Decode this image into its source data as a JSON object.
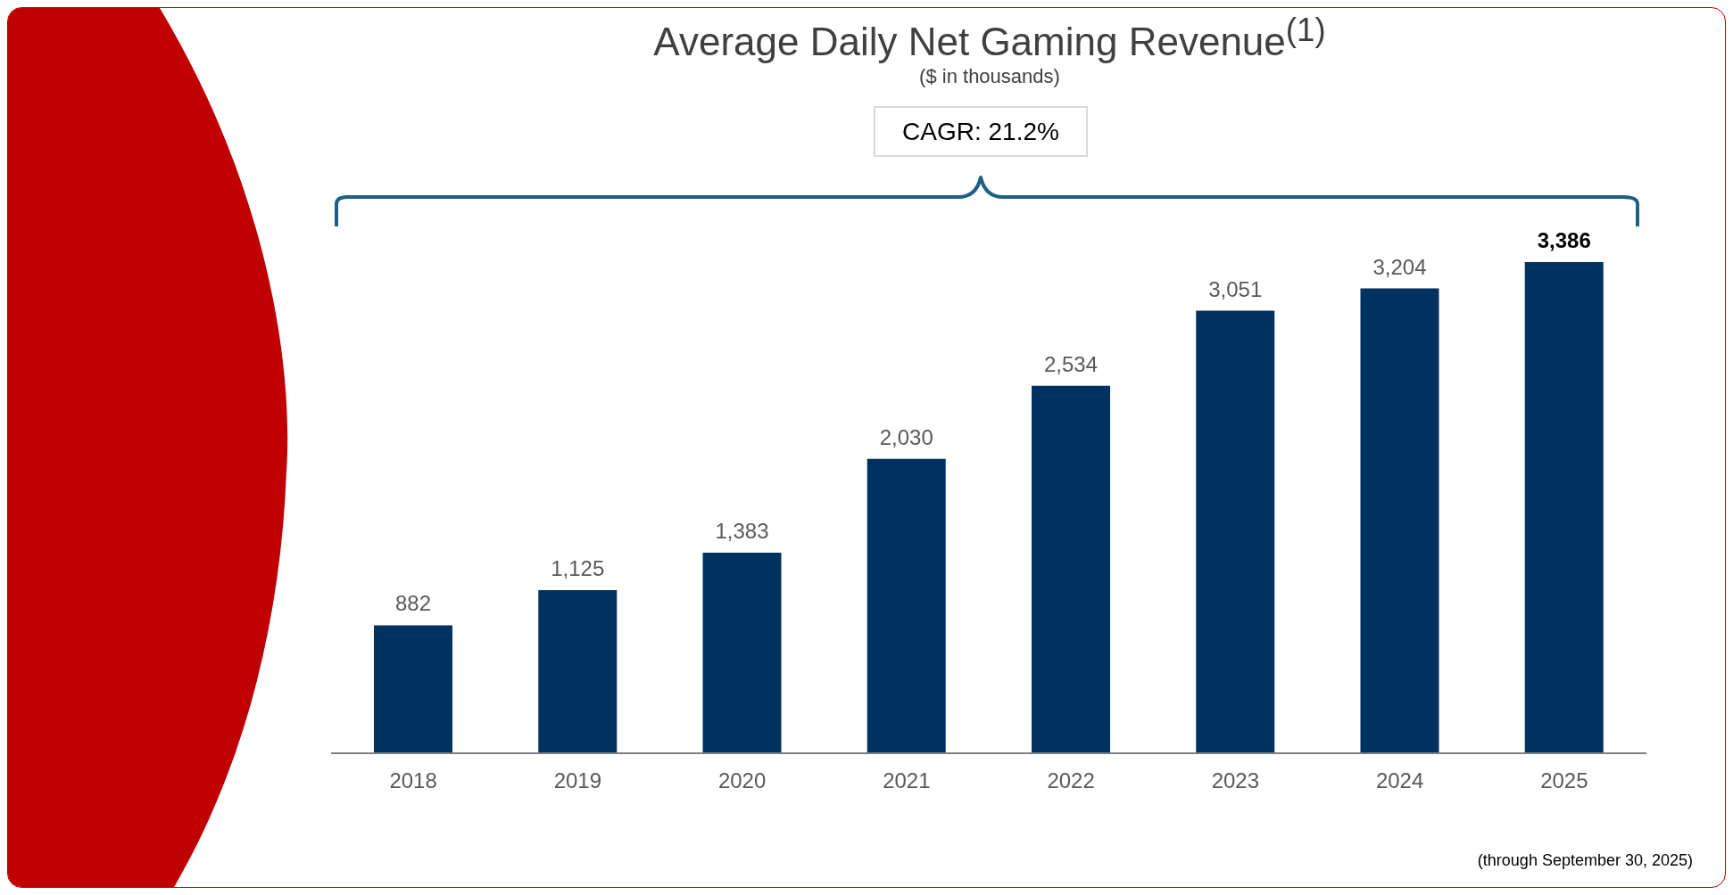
{
  "chart_data": {
    "type": "bar",
    "title": "Average Daily Net Gaming Revenue$^{(1)}$",
    "subtitle": "($ in thousands)",
    "categories": [
      "2018",
      "2019",
      "2020",
      "2021",
      "2022",
      "2023",
      "2024",
      "2025"
    ],
    "values": [
      882,
      1125,
      1383,
      2030,
      2534,
      3051,
      3204,
      3386
    ],
    "color": "#00325f",
    "value_labels": [
      "882",
      "1,125",
      "1,383",
      "2,030",
      "2,534",
      "3,051",
      "3,204",
      "3,386"
    ],
    "grid": false,
    "legend": false,
    "annotations": [
      "CAGR: 21.2%",
      "(through September 30, 2025)"
    ]
  }
}
